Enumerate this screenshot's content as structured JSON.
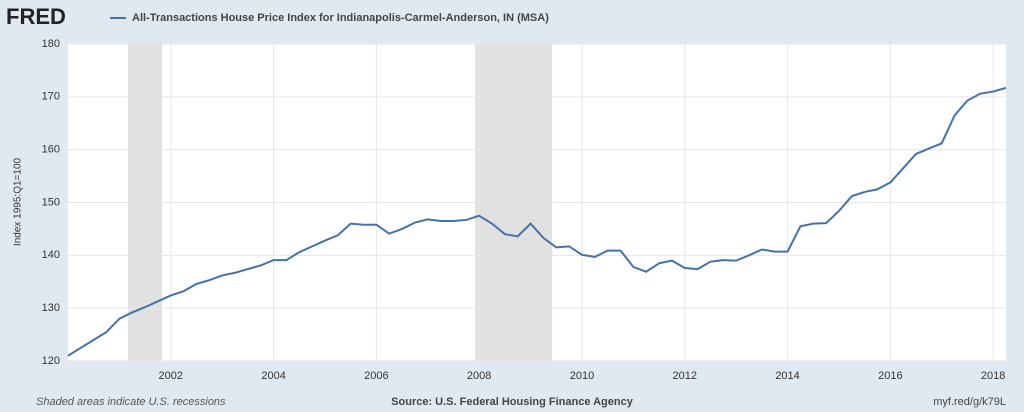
{
  "logo": "FRED",
  "source": "Source: U.S. Federal Housing Finance Agency",
  "note": "Shaded areas indicate U.S. recessions",
  "link": "myf.red/g/k79L",
  "chart_data": {
    "type": "line",
    "ylabel": "Index 1995:Q1=100",
    "xlim": [
      2000,
      2018.25
    ],
    "xticks": [
      2002,
      2004,
      2006,
      2008,
      2010,
      2012,
      2014,
      2016,
      2018
    ],
    "ylim": [
      120,
      180
    ],
    "yticks": [
      120,
      130,
      140,
      150,
      160,
      170,
      180
    ],
    "grid": true,
    "recessions": [
      [
        2001.17,
        2001.83
      ],
      [
        2007.92,
        2009.42
      ]
    ],
    "recession_color": "#e1e1e1",
    "x": [
      2000,
      2000.25,
      2000.5,
      2000.75,
      2001,
      2001.25,
      2001.5,
      2001.75,
      2002,
      2002.25,
      2002.5,
      2002.75,
      2003,
      2003.25,
      2003.5,
      2003.75,
      2004,
      2004.25,
      2004.5,
      2004.75,
      2005,
      2005.25,
      2005.5,
      2005.75,
      2006,
      2006.25,
      2006.5,
      2006.75,
      2007,
      2007.25,
      2007.5,
      2007.75,
      2008,
      2008.25,
      2008.5,
      2008.75,
      2009,
      2009.25,
      2009.5,
      2009.75,
      2010,
      2010.25,
      2010.5,
      2010.75,
      2011,
      2011.25,
      2011.5,
      2011.75,
      2012,
      2012.25,
      2012.5,
      2012.75,
      2013,
      2013.25,
      2013.5,
      2013.75,
      2014,
      2014.25,
      2014.5,
      2014.75,
      2015,
      2015.25,
      2015.5,
      2015.75,
      2016,
      2016.25,
      2016.5,
      2016.75,
      2017,
      2017.25,
      2017.5,
      2017.75,
      2018,
      2018.25
    ],
    "series": [
      {
        "name": "All-Transactions House Price Index for Indianapolis-Carmel-Anderson, IN (MSA)",
        "color": "#4572a7",
        "values": [
          121.0,
          122.5,
          124.0,
          125.5,
          128.0,
          129.2,
          130.2,
          131.3,
          132.4,
          133.2,
          134.6,
          135.3,
          136.2,
          136.7,
          137.4,
          138.1,
          139.1,
          139.1,
          140.6,
          141.7,
          142.8,
          143.8,
          146.0,
          145.8,
          145.8,
          144.1,
          145.0,
          146.2,
          146.8,
          146.5,
          146.5,
          146.7,
          147.5,
          146.0,
          144.0,
          143.6,
          146.0,
          143.3,
          141.5,
          141.7,
          140.1,
          139.7,
          140.9,
          140.9,
          137.8,
          136.9,
          138.5,
          139.0,
          137.6,
          137.4,
          138.8,
          139.1,
          139.0,
          140.0,
          141.1,
          140.7,
          140.7,
          145.5,
          146.0,
          146.1,
          148.4,
          151.2,
          152.0,
          152.5,
          153.8,
          156.5,
          159.2,
          160.2,
          161.2,
          166.5,
          169.3,
          170.6,
          171.0,
          171.7
        ]
      }
    ]
  }
}
